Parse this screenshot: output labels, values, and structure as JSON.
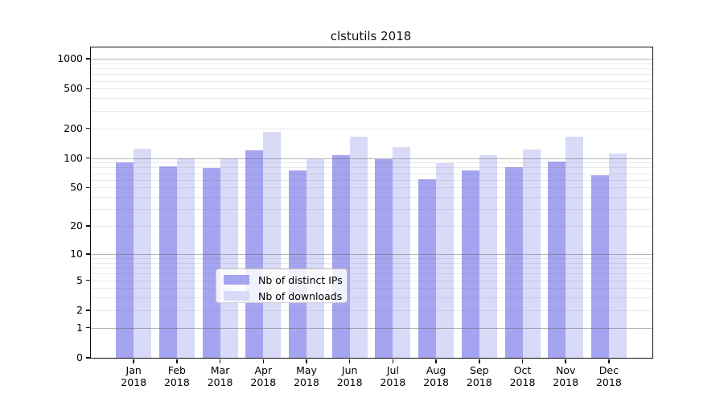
{
  "title": "clstutils 2018",
  "chart_data": {
    "type": "bar",
    "title": "clstutils 2018",
    "categories": [
      "Jan",
      "Feb",
      "Mar",
      "Apr",
      "May",
      "Jun",
      "Jul",
      "Aug",
      "Sep",
      "Oct",
      "Nov",
      "Dec"
    ],
    "x_tick_second_line": "2018",
    "series": [
      {
        "name": "Nb of distinct IPs",
        "color": "#a4a4f1",
        "values": [
          90,
          82,
          79,
          120,
          75,
          106,
          97,
          61,
          75,
          81,
          92,
          67
        ]
      },
      {
        "name": "Nb of downloads",
        "color": "#d9d9f8",
        "values": [
          125,
          99,
          99,
          185,
          98,
          163,
          129,
          89,
          106,
          123,
          165,
          111
        ]
      }
    ],
    "xlabel": "",
    "ylabel": "",
    "y_scale": "log(v+1)",
    "ylim": [
      0,
      1300
    ],
    "y_ticks": [
      0,
      1,
      2,
      5,
      10,
      20,
      50,
      100,
      200,
      500,
      1000
    ],
    "y_major_gridlines": [
      1,
      10,
      100,
      1000
    ],
    "y_minor_gridlines": [
      2,
      3,
      4,
      5,
      6,
      7,
      8,
      9,
      20,
      30,
      40,
      50,
      60,
      70,
      80,
      90,
      200,
      300,
      400,
      500,
      600,
      700,
      800,
      900
    ],
    "grid": "on",
    "legend_position": "lower center inside plot"
  },
  "legend": {
    "entries": [
      {
        "label": "Nb of distinct IPs",
        "color": "#a4a4f1"
      },
      {
        "label": "Nb of downloads",
        "color": "#d9d9f8"
      }
    ]
  },
  "colors": {
    "bar_distinct_ips": "#a4a4f1",
    "bar_downloads": "#d9d9f8",
    "major_grid": "#b5b5b5",
    "minor_grid": "#e8e8e8",
    "axis": "#111111",
    "background": "#ffffff"
  }
}
